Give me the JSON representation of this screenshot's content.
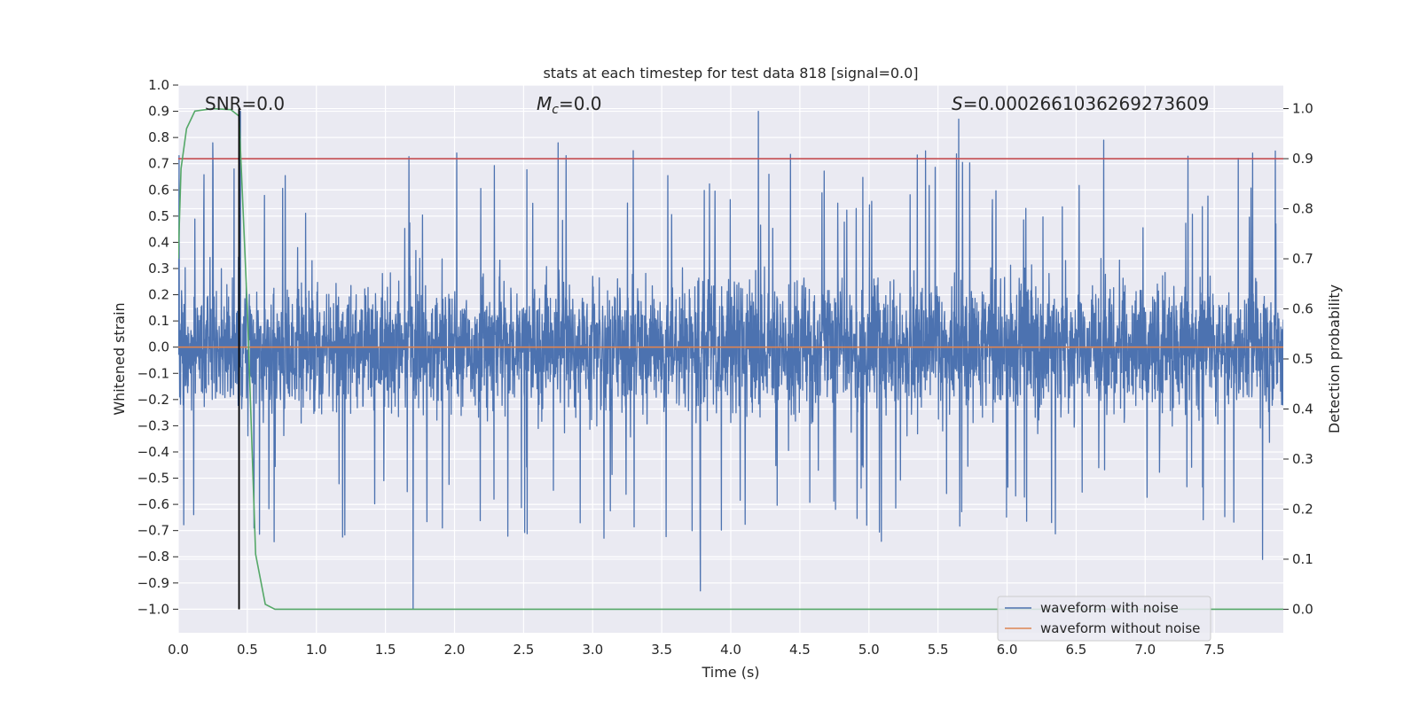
{
  "chart_data": {
    "type": "line",
    "title": "stats at each timestep for test data 818 [signal=0.0]",
    "xlabel": "Time (s)",
    "ylabel_left": "Whitened strain",
    "ylabel_right": "Detection probability",
    "xlim": [
      0.0,
      8.0
    ],
    "ylim_left": [
      -1.09,
      1.0
    ],
    "ylim_right": [
      -0.047,
      1.047
    ],
    "x_ticks": [
      0.0,
      0.5,
      1.0,
      1.5,
      2.0,
      2.5,
      3.0,
      3.5,
      4.0,
      4.5,
      5.0,
      5.5,
      6.0,
      6.5,
      7.0,
      7.5
    ],
    "x_tick_labels": [
      "0.0",
      "0.5",
      "1.0",
      "1.5",
      "2.0",
      "2.5",
      "3.0",
      "3.5",
      "4.0",
      "4.5",
      "5.0",
      "5.5",
      "6.0",
      "6.5",
      "7.0",
      "7.5"
    ],
    "y_left_ticks": [
      -1.0,
      -0.9,
      -0.8,
      -0.7,
      -0.6,
      -0.5,
      -0.4,
      -0.3,
      -0.2,
      -0.1,
      0.0,
      0.1,
      0.2,
      0.3,
      0.4,
      0.5,
      0.6,
      0.7,
      0.8,
      0.9,
      1.0
    ],
    "y_left_tick_labels": [
      "−1.0",
      "−0.9",
      "−0.8",
      "−0.7",
      "−0.6",
      "−0.5",
      "−0.4",
      "−0.3",
      "−0.2",
      "−0.1",
      "0.0",
      "0.1",
      "0.2",
      "0.3",
      "0.4",
      "0.5",
      "0.6",
      "0.7",
      "0.8",
      "0.9",
      "1.0"
    ],
    "y_right_ticks": [
      0.0,
      0.1,
      0.2,
      0.3,
      0.4,
      0.5,
      0.6,
      0.7,
      0.8,
      0.9,
      1.0
    ],
    "y_right_tick_labels": [
      "0.0",
      "0.1",
      "0.2",
      "0.3",
      "0.4",
      "0.5",
      "0.6",
      "0.7",
      "0.8",
      "0.9",
      "1.0"
    ],
    "grid": true,
    "annotations": {
      "snr": "SNR=0.0",
      "mc_symbol": "M",
      "mc_sub": "c",
      "mc_value": "=0.0",
      "s_symbol": "S",
      "s_value": "=0.0002661036269273609"
    },
    "series": [
      {
        "name": "waveform with noise",
        "color": "#4c72b0",
        "description": "dense whitened strain noise, envelope approx -0.5..0.55 with spikes to about +/-0.9",
        "amplitude_envelope": [
          -0.55,
          0.55
        ],
        "spike_maxima": [
          {
            "x": 0.25,
            "y": 0.78
          },
          {
            "x": 0.45,
            "y": 0.9
          },
          {
            "x": 1.7,
            "y": -1.0
          },
          {
            "x": 2.75,
            "y": 0.78
          },
          {
            "x": 3.78,
            "y": -0.93
          },
          {
            "x": 4.2,
            "y": 0.9
          },
          {
            "x": 5.65,
            "y": 0.87
          },
          {
            "x": 6.7,
            "y": 0.79
          },
          {
            "x": 7.85,
            "y": -0.81
          }
        ]
      },
      {
        "name": "waveform without noise",
        "color": "#dd8452",
        "x": [
          0.0,
          8.0
        ],
        "y": [
          0.0,
          0.0
        ]
      },
      {
        "name": "detection probability",
        "color": "#55a868",
        "axis": "right",
        "x": [
          0.0,
          0.02,
          0.06,
          0.12,
          0.25,
          0.38,
          0.44,
          0.5,
          0.56,
          0.63,
          0.7,
          8.0
        ],
        "y": [
          0.7,
          0.88,
          0.96,
          0.995,
          1.0,
          0.998,
          0.985,
          0.6,
          0.11,
          0.01,
          0.0,
          0.0
        ]
      },
      {
        "name": "threshold",
        "color": "#c44e52",
        "axis": "right",
        "x": [
          0.0,
          8.0
        ],
        "y": [
          0.9,
          0.9
        ]
      },
      {
        "name": "detection time marker",
        "color": "#000000",
        "x": [
          0.44,
          0.44
        ],
        "y_right": [
          0.0,
          1.0
        ]
      }
    ],
    "legend": {
      "position": "lower-right",
      "entries": [
        {
          "label": "waveform with noise",
          "color": "#4c72b0"
        },
        {
          "label": "waveform without noise",
          "color": "#dd8452"
        }
      ]
    },
    "colors": {
      "axes_bg": "#eaeaf2",
      "grid": "#ffffff",
      "noise": "#4c72b0",
      "clean": "#dd8452",
      "prob": "#55a868",
      "threshold": "#c44e52",
      "marker": "#000000"
    }
  }
}
